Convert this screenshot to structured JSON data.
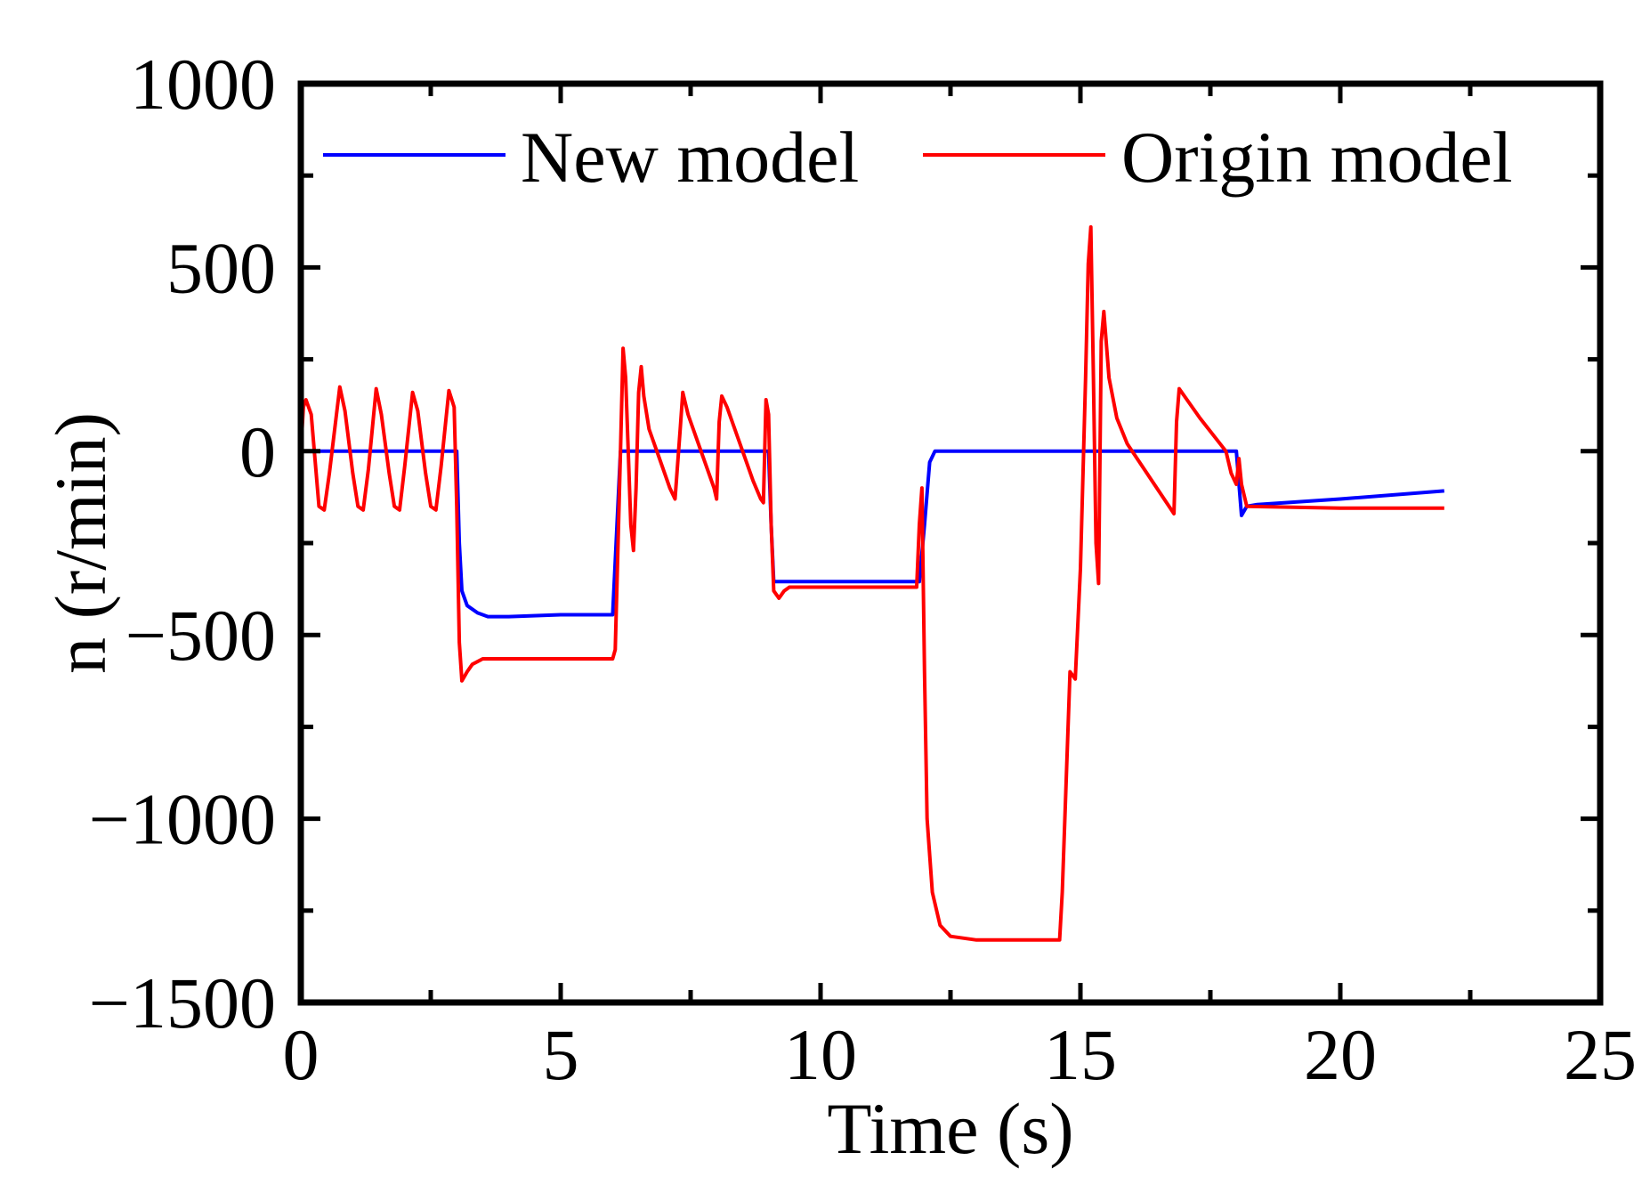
{
  "chart_data": {
    "type": "line",
    "title": "",
    "xlabel": "Time (s)",
    "ylabel": "n (r/min)",
    "xlim": [
      0,
      25
    ],
    "ylim": [
      -1500,
      1000
    ],
    "grid": false,
    "legend_position": "top",
    "x_ticks": [
      0,
      5,
      10,
      15,
      20,
      25
    ],
    "x_tick_labels": [
      "0",
      "5",
      "10",
      "15",
      "20",
      "25"
    ],
    "y_ticks": [
      1000,
      500,
      0,
      -500,
      -1000,
      -1500
    ],
    "y_tick_labels": [
      "1000",
      "500",
      "0",
      "−500",
      "−1000",
      "−1500"
    ],
    "series": [
      {
        "name": "New model",
        "color": "#0000ff",
        "points": [
          [
            0,
            0
          ],
          [
            3.0,
            0
          ],
          [
            3.05,
            -250
          ],
          [
            3.1,
            -380
          ],
          [
            3.2,
            -420
          ],
          [
            3.4,
            -440
          ],
          [
            3.6,
            -450
          ],
          [
            4.0,
            -450
          ],
          [
            5.0,
            -445
          ],
          [
            6.0,
            -445
          ],
          [
            6.05,
            -300
          ],
          [
            6.15,
            0
          ],
          [
            9.0,
            0
          ],
          [
            9.05,
            -200
          ],
          [
            9.1,
            -355
          ],
          [
            11.9,
            -355
          ],
          [
            12.0,
            -200
          ],
          [
            12.1,
            -30
          ],
          [
            12.2,
            0
          ],
          [
            18.0,
            0
          ],
          [
            18.1,
            -175
          ],
          [
            18.2,
            -150
          ],
          [
            18.4,
            -145
          ],
          [
            20.0,
            -130
          ],
          [
            22.0,
            -108
          ]
        ]
      },
      {
        "name": "Origin model",
        "color": "#ff0000",
        "points": [
          [
            0,
            0
          ],
          [
            0.05,
            120
          ],
          [
            0.1,
            140
          ],
          [
            0.2,
            100
          ],
          [
            0.35,
            -150
          ],
          [
            0.45,
            -160
          ],
          [
            0.55,
            -60
          ],
          [
            0.75,
            175
          ],
          [
            0.85,
            110
          ],
          [
            1.0,
            -60
          ],
          [
            1.1,
            -150
          ],
          [
            1.2,
            -160
          ],
          [
            1.3,
            -50
          ],
          [
            1.45,
            170
          ],
          [
            1.55,
            100
          ],
          [
            1.7,
            -60
          ],
          [
            1.8,
            -150
          ],
          [
            1.9,
            -160
          ],
          [
            2.0,
            -40
          ],
          [
            2.15,
            160
          ],
          [
            2.25,
            110
          ],
          [
            2.4,
            -60
          ],
          [
            2.5,
            -150
          ],
          [
            2.6,
            -160
          ],
          [
            2.7,
            -40
          ],
          [
            2.85,
            165
          ],
          [
            2.95,
            120
          ],
          [
            3.0,
            -150
          ],
          [
            3.05,
            -520
          ],
          [
            3.1,
            -625
          ],
          [
            3.2,
            -600
          ],
          [
            3.3,
            -580
          ],
          [
            3.5,
            -565
          ],
          [
            6.0,
            -565
          ],
          [
            6.05,
            -540
          ],
          [
            6.15,
            0
          ],
          [
            6.2,
            280
          ],
          [
            6.25,
            200
          ],
          [
            6.3,
            0
          ],
          [
            6.35,
            -200
          ],
          [
            6.4,
            -270
          ],
          [
            6.45,
            -100
          ],
          [
            6.5,
            160
          ],
          [
            6.55,
            230
          ],
          [
            6.6,
            150
          ],
          [
            6.7,
            60
          ],
          [
            6.9,
            -20
          ],
          [
            7.1,
            -100
          ],
          [
            7.2,
            -130
          ],
          [
            7.3,
            60
          ],
          [
            7.35,
            160
          ],
          [
            7.45,
            100
          ],
          [
            7.7,
            0
          ],
          [
            7.95,
            -100
          ],
          [
            8.0,
            -130
          ],
          [
            8.05,
            80
          ],
          [
            8.1,
            150
          ],
          [
            8.2,
            120
          ],
          [
            8.45,
            20
          ],
          [
            8.7,
            -80
          ],
          [
            8.85,
            -130
          ],
          [
            8.9,
            -140
          ],
          [
            8.95,
            140
          ],
          [
            9.0,
            100
          ],
          [
            9.05,
            -200
          ],
          [
            9.1,
            -380
          ],
          [
            9.2,
            -400
          ],
          [
            9.3,
            -380
          ],
          [
            9.4,
            -370
          ],
          [
            11.85,
            -370
          ],
          [
            11.9,
            -200
          ],
          [
            11.95,
            -100
          ],
          [
            12.0,
            -600
          ],
          [
            12.05,
            -1000
          ],
          [
            12.15,
            -1200
          ],
          [
            12.3,
            -1290
          ],
          [
            12.5,
            -1320
          ],
          [
            13.0,
            -1330
          ],
          [
            14.6,
            -1330
          ],
          [
            14.65,
            -1200
          ],
          [
            14.8,
            -600
          ],
          [
            14.9,
            -620
          ],
          [
            15.0,
            -320
          ],
          [
            15.1,
            200
          ],
          [
            15.15,
            510
          ],
          [
            15.2,
            610
          ],
          [
            15.25,
            200
          ],
          [
            15.3,
            -250
          ],
          [
            15.35,
            -360
          ],
          [
            15.4,
            300
          ],
          [
            15.45,
            380
          ],
          [
            15.55,
            200
          ],
          [
            15.7,
            90
          ],
          [
            15.9,
            20
          ],
          [
            16.8,
            -170
          ],
          [
            16.85,
            80
          ],
          [
            16.9,
            170
          ],
          [
            17.3,
            90
          ],
          [
            17.8,
            0
          ],
          [
            17.9,
            -60
          ],
          [
            18.0,
            -90
          ],
          [
            18.05,
            -20
          ],
          [
            18.1,
            -90
          ],
          [
            18.2,
            -150
          ],
          [
            20.0,
            -155
          ],
          [
            22.0,
            -155
          ]
        ]
      }
    ]
  }
}
